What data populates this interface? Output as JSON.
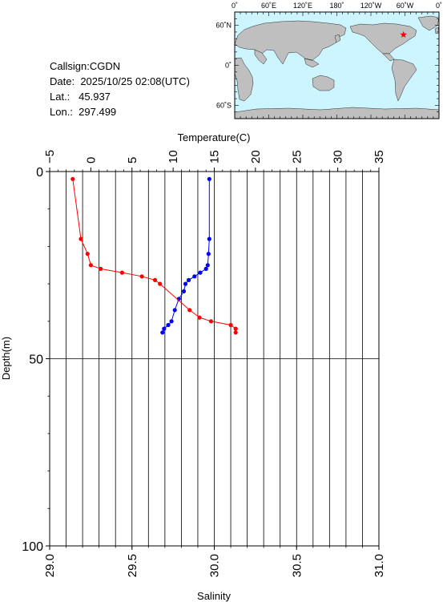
{
  "station": {
    "callsign_label": "Callsign:",
    "callsign": "CGDN",
    "date_label": "Date:",
    "date": "2025/10/25 02:08(UTC)",
    "lat_label": "Lat.:",
    "lat": "45.937",
    "lon_label": "Lon.:",
    "lon": "297.499"
  },
  "map": {
    "top_labels": [
      "0˚",
      "60˚E",
      "120˚E",
      "180˚",
      "120˚W",
      "60˚W",
      "0˚"
    ],
    "left_labels": [
      "60˚N",
      "0˚",
      "60˚S"
    ],
    "ocean_color": "#ccf5ff",
    "land_color": "#bfbfbf",
    "marker_color": "#ff0000",
    "marker_lon": 297.499,
    "marker_lat": 45.937
  },
  "chart_data": {
    "type": "line",
    "top_axis_label": "Temperature(C)",
    "bottom_axis_label": "Salinity",
    "ylabel": "Depth(m)",
    "temperature_range": [
      -5,
      35
    ],
    "temperature_ticks": [
      -5,
      0,
      5,
      10,
      15,
      20,
      25,
      30,
      35
    ],
    "temperature_tick_labels": [
      "−5",
      "0",
      "5",
      "10",
      "15",
      "20",
      "25",
      "30",
      "35"
    ],
    "salinity_range": [
      29.0,
      31.0
    ],
    "salinity_ticks": [
      29.0,
      29.5,
      30.0,
      30.5,
      31.0
    ],
    "salinity_tick_labels": [
      "29.0",
      "29.5",
      "30.0",
      "30.5",
      "31.0"
    ],
    "depth_range": [
      0,
      100
    ],
    "depth_ticks": [
      0,
      50,
      100
    ],
    "depth_tick_labels": [
      "0",
      "50",
      "100"
    ],
    "grid": true,
    "series": [
      {
        "quantity": "temperature",
        "color": "#0000ff",
        "depth": [
          2,
          18,
          22,
          25,
          26,
          27,
          28,
          29,
          30,
          32,
          34,
          37,
          40,
          41,
          42,
          43
        ],
        "values": [
          14.4,
          14.4,
          14.3,
          14.2,
          14.0,
          13.3,
          12.6,
          11.9,
          11.5,
          11.3,
          10.7,
          10.2,
          9.8,
          9.4,
          8.9,
          8.7
        ]
      },
      {
        "quantity": "salinity",
        "color": "#ff0000",
        "depth": [
          2,
          18,
          22,
          25,
          26,
          27,
          28,
          29,
          30,
          37,
          39,
          40,
          41,
          42,
          43
        ],
        "values": [
          29.14,
          29.19,
          29.23,
          29.25,
          29.31,
          29.44,
          29.56,
          29.64,
          29.67,
          29.85,
          29.91,
          29.98,
          30.1,
          30.13,
          30.13
        ]
      }
    ]
  }
}
